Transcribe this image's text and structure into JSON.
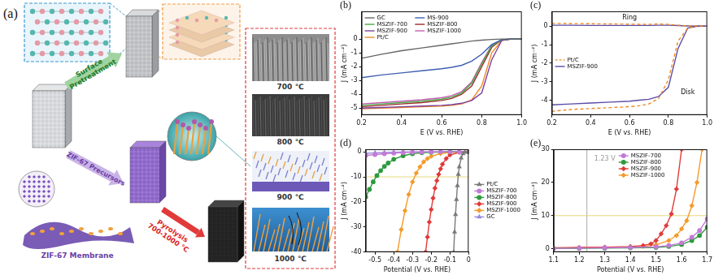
{
  "diagram": {
    "label": "(a)",
    "surface_pretreatment": [
      "Surface",
      "Pretreatment"
    ],
    "precursors": "ZIF-67 Precursors",
    "pyrolysis": [
      "Pyrolysis",
      "700-1000 ℃"
    ],
    "membrane": "ZIF-67 Membrane",
    "temperatures": [
      "700 ℃",
      "800 ℃",
      "900 ℃",
      "1000 ℃"
    ]
  },
  "chart_data": [
    {
      "type": "line",
      "title": "(b)",
      "x_label": "E (V vs. RHE)",
      "y_label": "J (mA cm⁻²)",
      "x": [
        0.2,
        0.3,
        0.4,
        0.5,
        0.6,
        0.65,
        0.7,
        0.75,
        0.8,
        0.85,
        0.9,
        0.95,
        1.0
      ],
      "series": [
        {
          "name": "GC",
          "color": "#666666",
          "values": [
            -1.4,
            -1.1,
            -0.85,
            -0.65,
            -0.45,
            -0.35,
            -0.25,
            -0.15,
            -0.08,
            -0.03,
            0,
            0,
            0
          ]
        },
        {
          "name": "MS-900",
          "color": "#3f5fb0",
          "values": [
            -2.8,
            -2.6,
            -2.45,
            -2.3,
            -2.15,
            -2.05,
            -1.9,
            -1.6,
            -1.1,
            -0.4,
            -0.05,
            0,
            0
          ]
        },
        {
          "name": "MSZIF-700",
          "color": "#4aa84a",
          "values": [
            -4.8,
            -4.7,
            -4.6,
            -4.5,
            -4.35,
            -4.2,
            -3.9,
            -3.2,
            -1.8,
            -0.5,
            -0.05,
            0,
            0
          ]
        },
        {
          "name": "MSZIF-800",
          "color": "#9b2b2b",
          "values": [
            -4.9,
            -4.8,
            -4.7,
            -4.6,
            -4.45,
            -4.3,
            -4.0,
            -3.4,
            -2.0,
            -0.6,
            -0.05,
            0,
            0
          ]
        },
        {
          "name": "MSZIF-900",
          "color": "#7b3fa0",
          "values": [
            -5.0,
            -4.95,
            -4.9,
            -4.85,
            -4.8,
            -4.75,
            -4.65,
            -4.45,
            -3.9,
            -1.5,
            -0.1,
            0,
            0
          ]
        },
        {
          "name": "MSZIF-1000",
          "color": "#c65cb5",
          "values": [
            -4.7,
            -4.6,
            -4.5,
            -4.4,
            -4.25,
            -4.1,
            -3.8,
            -3.1,
            -1.7,
            -0.45,
            -0.05,
            0,
            0
          ]
        },
        {
          "name": "Pt/C",
          "color": "#f08a24",
          "values": [
            -5.05,
            -5.0,
            -4.95,
            -4.9,
            -4.85,
            -4.8,
            -4.7,
            -4.4,
            -3.4,
            -1.0,
            -0.1,
            0,
            0
          ]
        }
      ],
      "xlim": [
        0.2,
        1.0
      ],
      "xticks": [
        0.2,
        0.4,
        0.6,
        0.8,
        {
          "value": 1.0,
          "label": "1.0"
        }
      ],
      "ylim": [
        -5.5,
        2
      ],
      "yticks": [
        -5,
        -4,
        -3,
        -2,
        -1,
        0
      ],
      "grid": false,
      "legend": "upper left"
    },
    {
      "type": "line",
      "title": "(c)",
      "x_label": "E (V vs. RHE)",
      "y_label": "J (mA cm⁻²)",
      "x": [
        0.2,
        0.3,
        0.4,
        0.5,
        0.6,
        0.65,
        0.7,
        0.75,
        0.8,
        0.85,
        0.9,
        0.95,
        1.0
      ],
      "series": [
        {
          "name": "Pt/C",
          "color": "#f08a24",
          "line_style": "dashed",
          "values": [
            0.15,
            0.14,
            0.13,
            0.12,
            0.11,
            0.1,
            0.1,
            0.12,
            0.1,
            0.05,
            0.02,
            0.01,
            0
          ]
        },
        {
          "name": "MSZIF-900",
          "color": "#5a4ba8",
          "line_style": "solid",
          "values": [
            0.05,
            0.05,
            0.04,
            0.04,
            0.04,
            0.04,
            0.04,
            0.05,
            0.05,
            0.03,
            0.01,
            0,
            0
          ]
        },
        {
          "name": "Pt/C",
          "color": "#f08a24",
          "line_style": "dashed",
          "values": [
            -4.6,
            -4.5,
            -4.45,
            -4.4,
            -4.35,
            -4.3,
            -4.2,
            -3.9,
            -2.9,
            -0.8,
            -0.1,
            0,
            0
          ]
        },
        {
          "name": "MSZIF-900",
          "color": "#5a4ba8",
          "line_style": "solid",
          "values": [
            -4.25,
            -4.2,
            -4.15,
            -4.1,
            -4.05,
            -4.0,
            -3.95,
            -3.8,
            -3.3,
            -1.2,
            -0.1,
            0,
            0
          ]
        }
      ],
      "annotations": [
        {
          "text": "Ring",
          "x": 0.6,
          "y": 0.45
        },
        {
          "text": "Disk",
          "x": 0.9,
          "y": -3.6
        }
      ],
      "xlim": [
        0.2,
        1.0
      ],
      "xticks": [
        0.2,
        0.4,
        0.6,
        0.8,
        {
          "value": 1.0,
          "label": "1.0"
        }
      ],
      "ylim": [
        -4.8,
        0.8
      ],
      "yticks": [
        -4,
        -3,
        -2,
        -1,
        0
      ],
      "grid": false,
      "legend": "center left"
    },
    {
      "type": "line",
      "title": "(d)",
      "x_label": "Potential (V vs. RHE)",
      "y_label": "J (mA cm⁻²)",
      "series": [
        {
          "name": "Pt/C",
          "color": "#7a7a7a",
          "marker": "triangle",
          "x": [
            -0.08,
            -0.075,
            -0.07,
            -0.065,
            -0.06,
            -0.055,
            -0.05,
            -0.04,
            -0.03,
            -0.02,
            0
          ],
          "values": [
            -40,
            -32,
            -25,
            -19,
            -13.5,
            -9,
            -6,
            -2.5,
            -0.8,
            -0.2,
            0
          ]
        },
        {
          "name": "MSZIF-700",
          "color": "#c27ad6",
          "marker": "circle",
          "x": [
            -0.55,
            -0.5,
            -0.45,
            -0.4,
            -0.35,
            -0.3,
            -0.25,
            -0.2,
            -0.15,
            -0.1,
            -0.05,
            0
          ],
          "values": [
            -1.5,
            -1.1,
            -0.8,
            -0.55,
            -0.35,
            -0.2,
            -0.1,
            -0.05,
            0,
            0,
            0,
            0
          ]
        },
        {
          "name": "MSZIF-800",
          "color": "#2e9a3e",
          "marker": "circle",
          "x": [
            -0.55,
            -0.53,
            -0.51,
            -0.49,
            -0.47,
            -0.45,
            -0.43,
            -0.4,
            -0.35,
            -0.3,
            -0.25,
            -0.2,
            -0.1,
            0
          ],
          "values": [
            -18,
            -15,
            -12,
            -9.5,
            -7.5,
            -5.8,
            -4.5,
            -3,
            -1.6,
            -0.8,
            -0.4,
            -0.2,
            0,
            0
          ]
        },
        {
          "name": "MSZIF-900",
          "color": "#e23a3a",
          "marker": "diamond",
          "x": [
            -0.23,
            -0.22,
            -0.21,
            -0.2,
            -0.19,
            -0.18,
            -0.17,
            -0.16,
            -0.15,
            -0.14,
            -0.12,
            -0.1,
            -0.05,
            0
          ],
          "values": [
            -40,
            -34,
            -28,
            -23,
            -18.5,
            -14.5,
            -11.5,
            -9,
            -6.8,
            -5,
            -2.7,
            -1.3,
            -0.2,
            0
          ]
        },
        {
          "name": "MSZIF-1000",
          "color": "#f59a2a",
          "marker": "diamond",
          "x": [
            -0.38,
            -0.36,
            -0.34,
            -0.32,
            -0.3,
            -0.28,
            -0.26,
            -0.24,
            -0.22,
            -0.2,
            -0.15,
            -0.1,
            0
          ],
          "values": [
            -40,
            -31,
            -23.5,
            -17,
            -12,
            -8.5,
            -6,
            -4,
            -2.7,
            -1.8,
            -0.7,
            -0.3,
            0
          ]
        },
        {
          "name": "GC",
          "color": "#9a8ad8",
          "marker": "triangle",
          "x": [
            -0.55,
            -0.5,
            -0.45,
            -0.4,
            -0.35,
            -0.3,
            -0.25,
            -0.2,
            -0.15,
            -0.1,
            -0.05,
            0
          ],
          "values": [
            -0.6,
            -0.4,
            -0.3,
            -0.2,
            -0.1,
            -0.05,
            0,
            0,
            0,
            0,
            0,
            0
          ]
        }
      ],
      "reference_lines": [
        {
          "axis": "y",
          "value": -10,
          "color": "#e6d77a"
        }
      ],
      "xlim": [
        -0.55,
        0
      ],
      "xticks": [
        -0.5,
        -0.4,
        -0.3,
        -0.2,
        -0.1,
        0
      ],
      "ylim": [
        -40,
        1
      ],
      "yticks": [
        -40,
        -30,
        -20,
        -10,
        0
      ],
      "grid": false,
      "legend": "right"
    },
    {
      "type": "line",
      "title": "(e)",
      "x_label": "Potential (V vs. RHE)",
      "y_label": "J (mA cm⁻²)",
      "series": [
        {
          "name": "MSZIF-700",
          "color": "#c27ad6",
          "marker": "circle",
          "x": [
            1.1,
            1.2,
            1.3,
            1.4,
            1.5,
            1.55,
            1.6,
            1.64,
            1.67,
            1.7
          ],
          "values": [
            0.1,
            0.2,
            0.3,
            0.4,
            0.6,
            1,
            1.8,
            3.5,
            5.5,
            9
          ]
        },
        {
          "name": "MSZIF-800",
          "color": "#2e9a3e",
          "marker": "circle",
          "x": [
            1.1,
            1.2,
            1.3,
            1.4,
            1.5,
            1.55,
            1.6,
            1.64,
            1.67,
            1.7
          ],
          "values": [
            0.1,
            0.15,
            0.2,
            0.3,
            0.4,
            0.7,
            1.3,
            2.5,
            4,
            6.5
          ]
        },
        {
          "name": "MSZIF-900",
          "color": "#e23a3a",
          "marker": "diamond",
          "x": [
            1.1,
            1.2,
            1.3,
            1.4,
            1.45,
            1.48,
            1.5,
            1.52,
            1.54,
            1.56,
            1.58,
            1.6
          ],
          "values": [
            0.3,
            0.4,
            0.5,
            0.7,
            1,
            1.5,
            2.5,
            4.5,
            7,
            10.5,
            18,
            30
          ]
        },
        {
          "name": "MSZIF-1000",
          "color": "#f59a2a",
          "marker": "diamond",
          "x": [
            1.1,
            1.2,
            1.3,
            1.4,
            1.45,
            1.5,
            1.55,
            1.58,
            1.6,
            1.62,
            1.64,
            1.66,
            1.68
          ],
          "values": [
            0.2,
            0.3,
            0.4,
            0.5,
            0.7,
            1.2,
            2.5,
            4,
            6,
            8.5,
            13,
            20,
            30
          ]
        }
      ],
      "reference_lines": [
        {
          "axis": "x",
          "value": 1.23,
          "color": "#aaaaaa"
        },
        {
          "axis": "y",
          "value": 10,
          "color": "#e6d77a"
        }
      ],
      "annotations": [
        {
          "text": "1.23 V",
          "x": 1.3,
          "y": 27,
          "color": "#999999"
        }
      ],
      "xlim": [
        1.1,
        1.7
      ],
      "xticks": [
        1.1,
        1.2,
        1.3,
        1.4,
        1.5,
        1.6,
        1.7
      ],
      "ylim": [
        -1,
        30
      ],
      "yticks": [
        0,
        10,
        20,
        30
      ],
      "grid": false,
      "legend": "upper left"
    }
  ]
}
